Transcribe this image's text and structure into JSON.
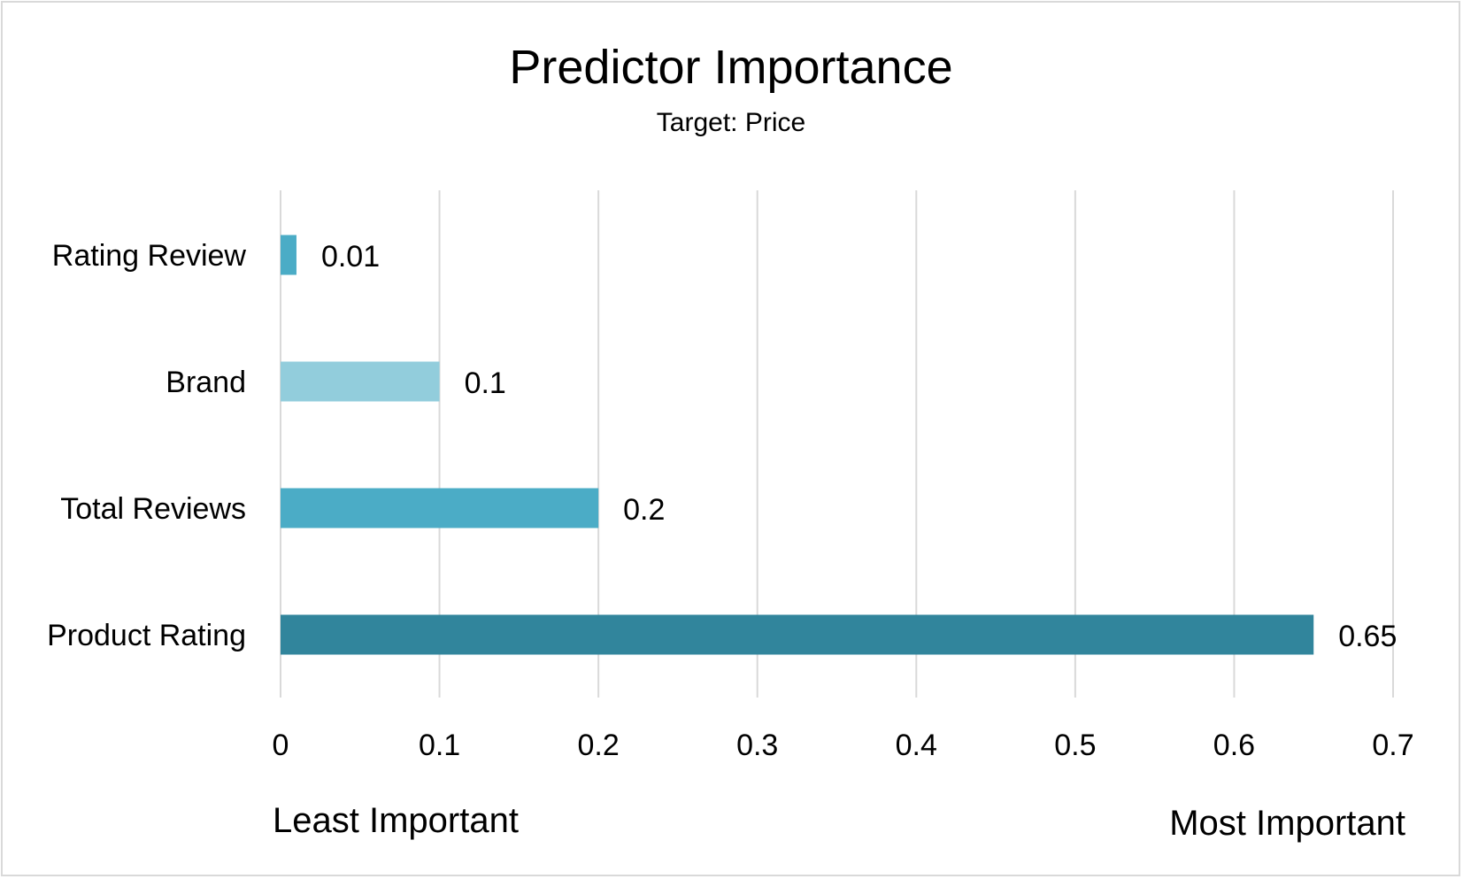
{
  "chart_data": {
    "type": "bar",
    "orientation": "horizontal",
    "title": "Predictor Importance",
    "subtitle": "Target: Price",
    "categories": [
      "Rating Review",
      "Brand",
      "Total Reviews",
      "Product Rating"
    ],
    "values": [
      0.01,
      0.1,
      0.2,
      0.65
    ],
    "data_labels": [
      "0.01",
      "0.1",
      "0.2",
      "0.65"
    ],
    "bar_colors": [
      "#4bacc6",
      "#92cddc",
      "#4bacc6",
      "#31859c"
    ],
    "xlim": [
      0,
      0.7
    ],
    "x_ticks": [
      0,
      0.1,
      0.2,
      0.3,
      0.4,
      0.5,
      0.6,
      0.7
    ],
    "x_tick_labels": [
      "0",
      "0.1",
      "0.2",
      "0.3",
      "0.4",
      "0.5",
      "0.6",
      "0.7"
    ],
    "grid": true,
    "legend": false,
    "axis_note_left": "Least Important",
    "axis_note_right": "Most Important",
    "gridline_color": "#d9d9d9"
  }
}
